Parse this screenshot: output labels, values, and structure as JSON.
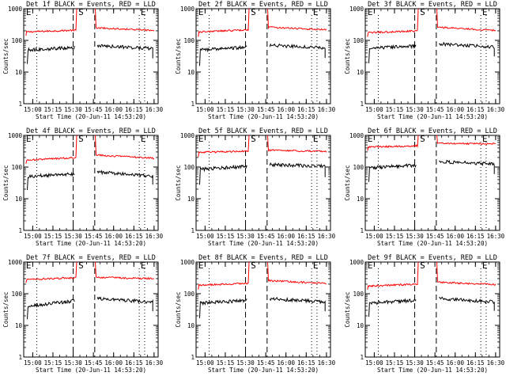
{
  "chart_data": [
    {
      "type": "line",
      "title": "Det 1f BLACK = Events, RED = LLD",
      "ylabel": "Counts/sec",
      "xlabel": "Start Time (20-Jun-11 14:53:20)",
      "xticks": [
        "15:00",
        "15:15",
        "15:30",
        "15:45",
        "16:00",
        "16:15",
        "16:30"
      ],
      "yticks": [
        "1",
        "10",
        "100",
        "1000"
      ],
      "ylim": [
        1,
        1000
      ],
      "yscale": "log",
      "xlim": [
        "14:53:20",
        "16:33:00"
      ],
      "markers": [
        {
          "label": "E",
          "x": "14:55"
        },
        {
          "label": "S",
          "x": "15:35"
        },
        {
          "label": "E",
          "x": "16:20"
        }
      ],
      "series": [
        {
          "color": "#ff0000",
          "segments": [
            {
              "x": [
                "14:55",
                "15:32"
              ],
              "y": [
                185,
                210
              ]
            },
            {
              "x": [
                "15:47",
                "16:30"
              ],
              "y": [
                250,
                205
              ]
            }
          ]
        },
        {
          "color": "#000000",
          "segments": [
            {
              "x": [
                "14:56",
                "15:31"
              ],
              "y": [
                50,
                60
              ]
            },
            {
              "x": [
                "15:48",
                "16:29"
              ],
              "y": [
                68,
                56
              ]
            }
          ]
        }
      ]
    },
    {
      "type": "line",
      "title": "Det 2f BLACK = Events, RED = LLD",
      "ylabel": "Counts/sec",
      "xlabel": "Start Time (20-Jun-11 14:53:20)",
      "xticks": [
        "15:00",
        "15:15",
        "15:30",
        "15:45",
        "16:00",
        "16:15",
        "16:30"
      ],
      "yticks": [
        "1",
        "10",
        "100",
        "1000"
      ],
      "ylim": [
        1,
        1000
      ],
      "yscale": "log",
      "xlim": [
        "14:53:20",
        "16:33:00"
      ],
      "markers": [
        {
          "label": "E",
          "x": "14:55"
        },
        {
          "label": "S",
          "x": "15:35"
        },
        {
          "label": "E",
          "x": "16:20"
        }
      ],
      "series": [
        {
          "color": "#ff0000",
          "segments": [
            {
              "x": [
                "14:55",
                "15:32"
              ],
              "y": [
                185,
                215
              ]
            },
            {
              "x": [
                "15:47",
                "16:30"
              ],
              "y": [
                260,
                215
              ]
            }
          ]
        },
        {
          "color": "#000000",
          "segments": [
            {
              "x": [
                "14:56",
                "15:31"
              ],
              "y": [
                50,
                62
              ]
            },
            {
              "x": [
                "15:48",
                "16:29"
              ],
              "y": [
                70,
                58
              ]
            }
          ]
        }
      ]
    },
    {
      "type": "line",
      "title": "Det 3f BLACK = Events, RED = LLD",
      "ylabel": "Counts/sec",
      "xlabel": "Start Time (20-Jun-11 14:53:20)",
      "xticks": [
        "15:00",
        "15:15",
        "15:30",
        "15:45",
        "16:00",
        "16:15",
        "16:30"
      ],
      "yticks": [
        "1",
        "10",
        "100",
        "1000"
      ],
      "ylim": [
        1,
        1000
      ],
      "yscale": "log",
      "xlim": [
        "14:53:20",
        "16:33:00"
      ],
      "markers": [
        {
          "label": "E",
          "x": "14:55"
        },
        {
          "label": "S",
          "x": "15:35"
        },
        {
          "label": "E",
          "x": "16:20"
        }
      ],
      "series": [
        {
          "color": "#ff0000",
          "segments": [
            {
              "x": [
                "14:55",
                "15:32"
              ],
              "y": [
                175,
                200
              ]
            },
            {
              "x": [
                "15:47",
                "16:30"
              ],
              "y": [
                260,
                205
              ]
            }
          ]
        },
        {
          "color": "#000000",
          "segments": [
            {
              "x": [
                "14:56",
                "15:31"
              ],
              "y": [
                55,
                68
              ]
            },
            {
              "x": [
                "15:48",
                "16:29"
              ],
              "y": [
                78,
                62
              ]
            }
          ]
        }
      ]
    },
    {
      "type": "line",
      "title": "Det 4f BLACK = Events, RED = LLD",
      "ylabel": "Counts/sec",
      "xlabel": "Start Time (20-Jun-11 14:53:20)",
      "xticks": [
        "15:00",
        "15:15",
        "15:30",
        "15:45",
        "16:00",
        "16:15",
        "16:30"
      ],
      "yticks": [
        "1",
        "10",
        "100",
        "1000"
      ],
      "ylim": [
        1,
        1000
      ],
      "yscale": "log",
      "xlim": [
        "14:53:20",
        "16:33:00"
      ],
      "markers": [
        {
          "label": "E",
          "x": "14:55"
        },
        {
          "label": "S",
          "x": "15:35"
        },
        {
          "label": "E",
          "x": "16:20"
        }
      ],
      "series": [
        {
          "color": "#ff0000",
          "segments": [
            {
              "x": [
                "14:55",
                "15:32"
              ],
              "y": [
                165,
                200
              ]
            },
            {
              "x": [
                "15:47",
                "16:30"
              ],
              "y": [
                240,
                190
              ]
            }
          ]
        },
        {
          "color": "#000000",
          "segments": [
            {
              "x": [
                "14:56",
                "15:31"
              ],
              "y": [
                50,
                62
              ]
            },
            {
              "x": [
                "15:48",
                "16:29"
              ],
              "y": [
                70,
                52
              ]
            }
          ]
        }
      ]
    },
    {
      "type": "line",
      "title": "Det 5f BLACK = Events, RED = LLD",
      "ylabel": "Counts/sec",
      "xlabel": "Start Time (20-Jun-11 14:53:20)",
      "xticks": [
        "15:00",
        "15:15",
        "15:30",
        "15:45",
        "16:00",
        "16:15",
        "16:30"
      ],
      "yticks": [
        "1",
        "10",
        "100",
        "1000"
      ],
      "ylim": [
        1,
        1000
      ],
      "yscale": "log",
      "xlim": [
        "14:53:20",
        "16:33:00"
      ],
      "markers": [
        {
          "label": "E",
          "x": "14:55"
        },
        {
          "label": "S",
          "x": "15:35"
        },
        {
          "label": "E",
          "x": "16:20"
        }
      ],
      "series": [
        {
          "color": "#ff0000",
          "segments": [
            {
              "x": [
                "14:55",
                "15:32"
              ],
              "y": [
                290,
                320
              ]
            },
            {
              "x": [
                "15:47",
                "16:30"
              ],
              "y": [
                340,
                310
              ]
            }
          ]
        },
        {
          "color": "#000000",
          "segments": [
            {
              "x": [
                "14:56",
                "15:31"
              ],
              "y": [
                85,
                105
              ]
            },
            {
              "x": [
                "15:48",
                "16:29"
              ],
              "y": [
                120,
                105
              ]
            }
          ]
        }
      ]
    },
    {
      "type": "line",
      "title": "Det 6f BLACK = Events, RED = LLD",
      "ylabel": "Counts/sec",
      "xlabel": "Start Time (20-Jun-11 14:53:20)",
      "xticks": [
        "15:00",
        "15:15",
        "15:30",
        "15:45",
        "16:00",
        "16:15",
        "16:30"
      ],
      "yticks": [
        "1",
        "10",
        "100",
        "1000"
      ],
      "ylim": [
        1,
        1000
      ],
      "yscale": "log",
      "xlim": [
        "14:53:20",
        "16:33:00"
      ],
      "markers": [
        {
          "label": "E",
          "x": "14:55"
        },
        {
          "label": "S",
          "x": "15:35"
        },
        {
          "label": "E",
          "x": "16:20"
        }
      ],
      "series": [
        {
          "color": "#ff0000",
          "segments": [
            {
              "x": [
                "14:55",
                "15:32"
              ],
              "y": [
                430,
                470
              ]
            },
            {
              "x": [
                "15:47",
                "16:30"
              ],
              "y": [
                560,
                540
              ]
            }
          ]
        },
        {
          "color": "#000000",
          "segments": [
            {
              "x": [
                "14:56",
                "15:31"
              ],
              "y": [
                95,
                115
              ]
            },
            {
              "x": [
                "15:48",
                "16:29"
              ],
              "y": [
                150,
                125
              ]
            }
          ]
        }
      ]
    },
    {
      "type": "line",
      "title": "Det 7f BLACK = Events, RED = LLD",
      "ylabel": "Counts/sec",
      "xlabel": "Start Time (20-Jun-11 14:53:20)",
      "xticks": [
        "15:00",
        "15:15",
        "15:30",
        "15:45",
        "16:00",
        "16:15",
        "16:30"
      ],
      "yticks": [
        "1",
        "10",
        "100",
        "1000"
      ],
      "ylim": [
        1,
        1000
      ],
      "yscale": "log",
      "xlim": [
        "14:53:20",
        "16:33:00"
      ],
      "markers": [
        {
          "label": "E",
          "x": "14:55"
        },
        {
          "label": "S",
          "x": "15:35"
        },
        {
          "label": "E",
          "x": "16:20"
        }
      ],
      "series": [
        {
          "color": "#ff0000",
          "segments": [
            {
              "x": [
                "14:55",
                "15:32"
              ],
              "y": [
                280,
                320
              ]
            },
            {
              "x": [
                "15:47",
                "16:30"
              ],
              "y": [
                330,
                300
              ]
            }
          ]
        },
        {
          "color": "#000000",
          "segments": [
            {
              "x": [
                "14:56",
                "15:31"
              ],
              "y": [
                40,
                60
              ]
            },
            {
              "x": [
                "15:48",
                "16:29"
              ],
              "y": [
                70,
                55
              ]
            }
          ]
        }
      ]
    },
    {
      "type": "line",
      "title": "Det 8f BLACK = Events, RED = LLD",
      "ylabel": "Counts/sec",
      "xlabel": "Start Time (20-Jun-11 14:53:20)",
      "xticks": [
        "15:00",
        "15:15",
        "15:30",
        "15:45",
        "16:00",
        "16:15",
        "16:30"
      ],
      "yticks": [
        "1",
        "10",
        "100",
        "1000"
      ],
      "ylim": [
        1,
        1000
      ],
      "yscale": "log",
      "xlim": [
        "14:53:20",
        "16:33:00"
      ],
      "markers": [
        {
          "label": "E",
          "x": "14:55"
        },
        {
          "label": "S",
          "x": "15:35"
        },
        {
          "label": "E",
          "x": "16:20"
        }
      ],
      "series": [
        {
          "color": "#ff0000",
          "segments": [
            {
              "x": [
                "14:55",
                "15:32"
              ],
              "y": [
                185,
                215
              ]
            },
            {
              "x": [
                "15:47",
                "16:30"
              ],
              "y": [
                260,
                210
              ]
            }
          ]
        },
        {
          "color": "#000000",
          "segments": [
            {
              "x": [
                "14:56",
                "15:31"
              ],
              "y": [
                50,
                62
              ]
            },
            {
              "x": [
                "15:48",
                "16:29"
              ],
              "y": [
                70,
                55
              ]
            }
          ]
        }
      ]
    },
    {
      "type": "line",
      "title": "Det 9f BLACK = Events, RED = LLD",
      "ylabel": "Counts/sec",
      "xlabel": "Start Time (20-Jun-11 14:53:20)",
      "xticks": [
        "15:00",
        "15:15",
        "15:30",
        "15:45",
        "16:00",
        "16:15",
        "16:30"
      ],
      "yticks": [
        "1",
        "10",
        "100",
        "1000"
      ],
      "ylim": [
        1,
        1000
      ],
      "yscale": "log",
      "xlim": [
        "14:53:20",
        "16:33:00"
      ],
      "markers": [
        {
          "label": "E",
          "x": "14:55"
        },
        {
          "label": "S",
          "x": "15:35"
        },
        {
          "label": "E",
          "x": "16:20"
        }
      ],
      "series": [
        {
          "color": "#ff0000",
          "segments": [
            {
              "x": [
                "14:55",
                "15:32"
              ],
              "y": [
                175,
                200
              ]
            },
            {
              "x": [
                "15:47",
                "16:30"
              ],
              "y": [
                230,
                195
              ]
            }
          ]
        },
        {
          "color": "#000000",
          "segments": [
            {
              "x": [
                "14:56",
                "15:31"
              ],
              "y": [
                50,
                62
              ]
            },
            {
              "x": [
                "15:48",
                "16:29"
              ],
              "y": [
                72,
                55
              ]
            }
          ]
        }
      ]
    }
  ]
}
